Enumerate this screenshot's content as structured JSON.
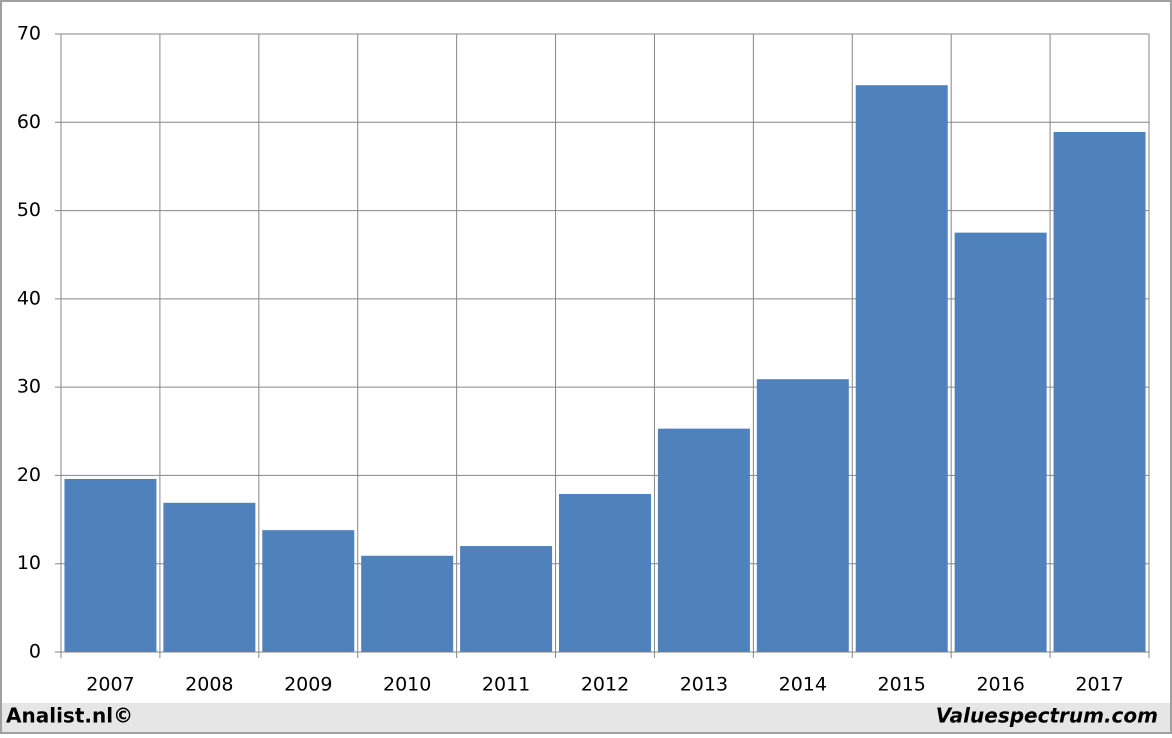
{
  "chart_data": {
    "type": "bar",
    "categories": [
      "2007",
      "2008",
      "2009",
      "2010",
      "2011",
      "2012",
      "2013",
      "2014",
      "2015",
      "2016",
      "2017"
    ],
    "values": [
      19.6,
      16.9,
      13.8,
      10.9,
      12.0,
      17.9,
      25.3,
      30.9,
      64.2,
      47.5,
      58.9
    ],
    "color": "#4f81bd",
    "ylim": [
      0,
      70
    ],
    "yticks": [
      0,
      10,
      20,
      30,
      40,
      50,
      60,
      70
    ],
    "grid": true
  },
  "footer": {
    "left": "Analist.nl©",
    "right": "Valuespectrum.com"
  }
}
